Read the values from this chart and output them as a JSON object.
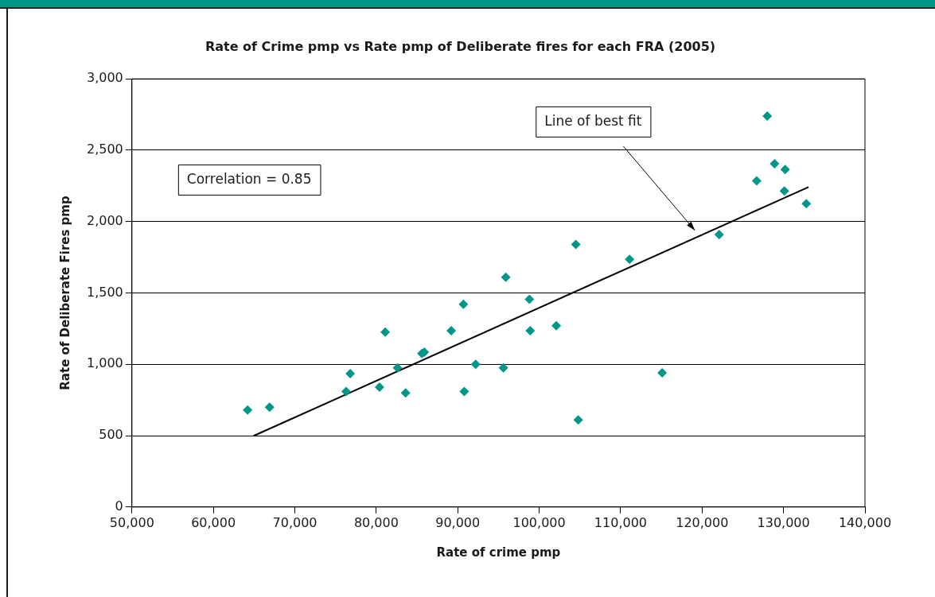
{
  "chart_data": {
    "type": "scatter",
    "title": "Rate of Crime pmp vs Rate pmp of Deliberate fires for each FRA (2005)",
    "xlabel": "Rate of crime pmp",
    "ylabel": "Rate of Deliberate Fires pmp",
    "xlim": [
      50000,
      140000
    ],
    "xticks": [
      {
        "value": 50000,
        "label": "50,000"
      },
      {
        "value": 60000,
        "label": "60,000"
      },
      {
        "value": 70000,
        "label": "70,000"
      },
      {
        "value": 80000,
        "label": "80,000"
      },
      {
        "value": 90000,
        "label": "90,000"
      },
      {
        "value": 100000,
        "label": "100,000"
      },
      {
        "value": 110000,
        "label": "110,000"
      },
      {
        "value": 120000,
        "label": "120,000"
      },
      {
        "value": 130000,
        "label": "130,000"
      },
      {
        "value": 140000,
        "label": "140,000"
      }
    ],
    "ylim": [
      0,
      3000
    ],
    "yticks": [
      0,
      500,
      {
        "value": 1000,
        "label": "1,000"
      },
      {
        "value": 1500,
        "label": "1,500"
      },
      {
        "value": 2000,
        "label": "2,000"
      },
      {
        "value": 2500,
        "label": "2,500"
      },
      {
        "value": 3000,
        "label": "3,000"
      }
    ],
    "grid": "y",
    "legend": false,
    "marker": "diamond",
    "series": [
      {
        "type": "scatter",
        "color": "#00968a",
        "x": [
          64200,
          66900,
          76300,
          76800,
          80400,
          81100,
          82600,
          83600,
          85600,
          85900,
          89200,
          90700,
          90800,
          92200,
          95600,
          95900,
          98800,
          98900,
          102100,
          104800,
          104500,
          111100,
          115100,
          122100,
          126700,
          128000,
          128900,
          130200,
          130100,
          132800
        ],
        "values": [
          680,
          700,
          810,
          935,
          840,
          1225,
          975,
          800,
          1075,
          1085,
          1235,
          1420,
          810,
          1000,
          975,
          1610,
          1455,
          1235,
          1270,
          610,
          1840,
          1735,
          940,
          1910,
          2285,
          2740,
          2405,
          2365,
          2215,
          2125
        ]
      },
      {
        "type": "line",
        "color": "#000000",
        "marker": "none",
        "line_style": "solid",
        "x": [
          65000,
          133000
        ],
        "values": [
          500,
          2240
        ]
      }
    ],
    "annotations": [
      "Correlation = 0.85",
      "Line of best fit"
    ]
  }
}
